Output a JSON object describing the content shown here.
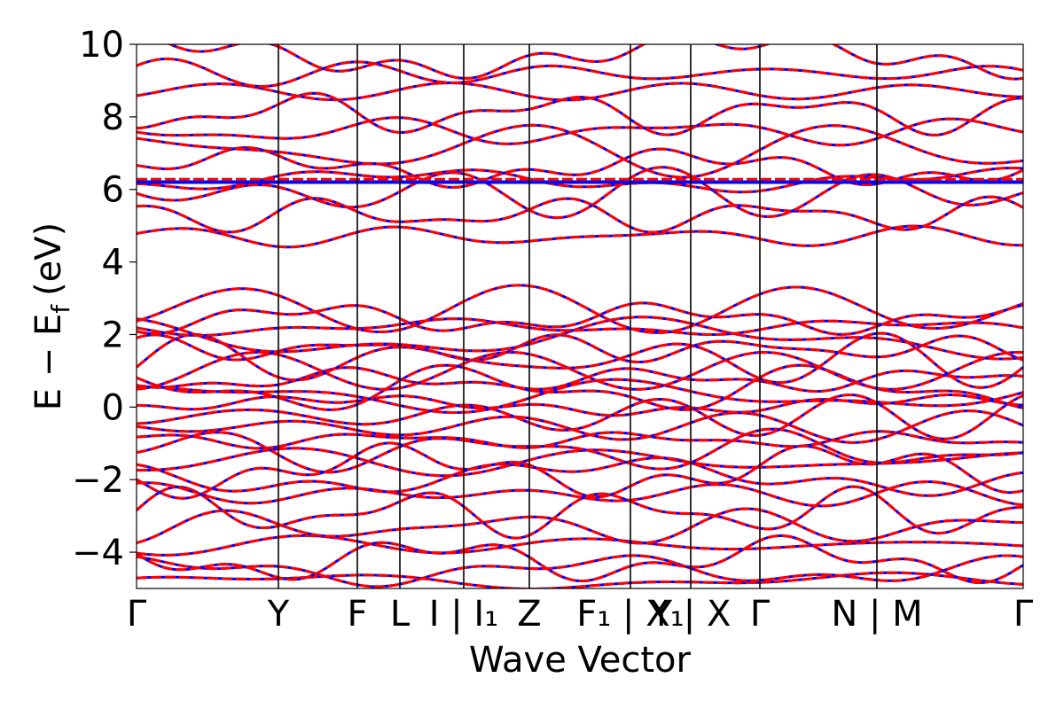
{
  "chart_data": {
    "type": "line",
    "title": "",
    "xlabel": "Wave Vector",
    "ylabel": "E − E",
    "ylabel_subscript": "f",
    "ylabel_unit": "(eV)",
    "ylim": [
      -5,
      10
    ],
    "yticks": [
      -4,
      -2,
      0,
      2,
      4,
      6,
      8,
      10
    ],
    "ytick_labels": [
      "−4",
      "−2",
      "0",
      "2",
      "4",
      "6",
      "8",
      "10"
    ],
    "high_symmetry_points": [
      {
        "label": "Γ",
        "x": 0.0
      },
      {
        "label": "Y",
        "x": 0.16
      },
      {
        "label": "F",
        "x": 0.249
      },
      {
        "label": "L",
        "x": 0.297
      },
      {
        "label": "I | I₁",
        "x": 0.369
      },
      {
        "label": "Z",
        "x": 0.443
      },
      {
        "label": "F₁ | X₁",
        "x": 0.557
      },
      {
        "label": "Y | X",
        "x": 0.625
      },
      {
        "label": "Γ",
        "x": 0.703
      },
      {
        "label": "N | M",
        "x": 0.835
      },
      {
        "label": "Γ",
        "x": 1.0
      }
    ],
    "series": [
      {
        "color": "#0000ff",
        "style": "solid"
      },
      {
        "color": "#ff0000",
        "style": "dashed"
      }
    ],
    "bands_base": [
      -4.8,
      -4.5,
      -4.2,
      -3.8,
      -3.3,
      -2.9,
      -2.4,
      -1.9,
      -1.75,
      -1.5,
      -1.2,
      -0.9,
      -0.55,
      -0.25,
      0.05,
      0.3,
      0.5,
      0.75,
      1.0,
      1.3,
      1.6,
      1.9,
      2.2,
      2.45,
      2.7,
      4.7,
      5.3,
      5.9,
      6.25,
      6.6,
      7.1,
      7.6,
      8.1,
      8.7,
      9.2,
      9.7
    ],
    "flat_band": 6.2,
    "grid": false,
    "legend": "none"
  }
}
